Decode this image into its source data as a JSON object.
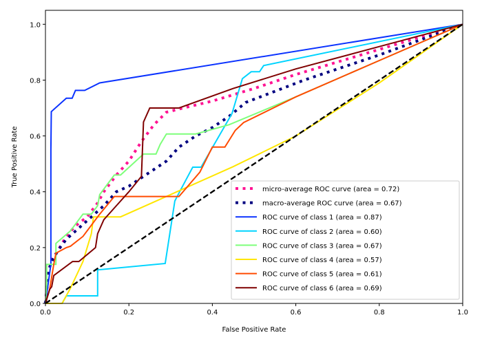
{
  "chart_data": {
    "type": "line",
    "title": "",
    "xlabel": "False Positive Rate",
    "ylabel": "True Positive Rate",
    "xlim": [
      0.0,
      1.0
    ],
    "ylim": [
      0.0,
      1.05
    ],
    "xticks": [
      "0.0",
      "0.2",
      "0.4",
      "0.6",
      "0.8",
      "1.0"
    ],
    "yticks": [
      "0.0",
      "0.2",
      "0.4",
      "0.6",
      "0.8",
      "1.0"
    ],
    "xtick_values": [
      0.0,
      0.2,
      0.4,
      0.6,
      0.8,
      1.0
    ],
    "ytick_values": [
      0.0,
      0.2,
      0.4,
      0.6,
      0.8,
      1.0
    ],
    "legend_position": "lower-right",
    "grid": false,
    "series": [
      {
        "name": "micro-average ROC curve (area = 0.72)",
        "color": "#ff1493",
        "style": "dotted",
        "points": [
          [
            0,
            0
          ],
          [
            0.004,
            0.06
          ],
          [
            0.008,
            0.12
          ],
          [
            0.015,
            0.155
          ],
          [
            0.03,
            0.19
          ],
          [
            0.05,
            0.24
          ],
          [
            0.07,
            0.275
          ],
          [
            0.1,
            0.31
          ],
          [
            0.125,
            0.36
          ],
          [
            0.14,
            0.4
          ],
          [
            0.17,
            0.46
          ],
          [
            0.2,
            0.51
          ],
          [
            0.23,
            0.58
          ],
          [
            0.26,
            0.64
          ],
          [
            0.29,
            0.685
          ],
          [
            0.33,
            0.7
          ],
          [
            0.4,
            0.725
          ],
          [
            0.5,
            0.77
          ],
          [
            0.6,
            0.82
          ],
          [
            0.7,
            0.865
          ],
          [
            0.8,
            0.91
          ],
          [
            0.9,
            0.955
          ],
          [
            1.0,
            1.0
          ]
        ]
      },
      {
        "name": "macro-average ROC curve (area = 0.67)",
        "color": "#000080",
        "style": "dotted",
        "points": [
          [
            0,
            0
          ],
          [
            0.004,
            0.06
          ],
          [
            0.008,
            0.12
          ],
          [
            0.015,
            0.15
          ],
          [
            0.03,
            0.19
          ],
          [
            0.05,
            0.23
          ],
          [
            0.08,
            0.27
          ],
          [
            0.11,
            0.31
          ],
          [
            0.14,
            0.35
          ],
          [
            0.17,
            0.4
          ],
          [
            0.2,
            0.42
          ],
          [
            0.23,
            0.45
          ],
          [
            0.26,
            0.48
          ],
          [
            0.29,
            0.51
          ],
          [
            0.32,
            0.56
          ],
          [
            0.36,
            0.6
          ],
          [
            0.4,
            0.63
          ],
          [
            0.44,
            0.67
          ],
          [
            0.48,
            0.72
          ],
          [
            0.55,
            0.76
          ],
          [
            0.62,
            0.8
          ],
          [
            0.7,
            0.84
          ],
          [
            0.8,
            0.89
          ],
          [
            0.9,
            0.945
          ],
          [
            1.0,
            1.0
          ]
        ]
      },
      {
        "name": "ROC curve of class 1 (area = 0.87)",
        "color": "#0a32ff",
        "style": "solid",
        "points": [
          [
            0,
            0
          ],
          [
            0.013,
            0.14
          ],
          [
            0.013,
            0.55
          ],
          [
            0.014,
            0.687
          ],
          [
            0.05,
            0.735
          ],
          [
            0.064,
            0.735
          ],
          [
            0.072,
            0.763
          ],
          [
            0.094,
            0.763
          ],
          [
            0.13,
            0.79
          ],
          [
            1.0,
            1.0
          ]
        ]
      },
      {
        "name": "ROC curve of class 2 (area = 0.60)",
        "color": "#00d4ff",
        "style": "solid",
        "points": [
          [
            0,
            0
          ],
          [
            0.04,
            0
          ],
          [
            0.05,
            0.027
          ],
          [
            0.125,
            0.027
          ],
          [
            0.125,
            0.12
          ],
          [
            0.287,
            0.143
          ],
          [
            0.31,
            0.367
          ],
          [
            0.325,
            0.41
          ],
          [
            0.353,
            0.488
          ],
          [
            0.373,
            0.488
          ],
          [
            0.447,
            0.68
          ],
          [
            0.472,
            0.805
          ],
          [
            0.493,
            0.83
          ],
          [
            0.513,
            0.83
          ],
          [
            0.523,
            0.852
          ],
          [
            1.0,
            1.0
          ]
        ]
      },
      {
        "name": "ROC curve of class 3 (area = 0.67)",
        "color": "#7dff7a",
        "style": "solid",
        "points": [
          [
            0,
            0
          ],
          [
            0.003,
            0.07
          ],
          [
            0.003,
            0.14
          ],
          [
            0.025,
            0.14
          ],
          [
            0.025,
            0.215
          ],
          [
            0.06,
            0.26
          ],
          [
            0.09,
            0.32
          ],
          [
            0.11,
            0.32
          ],
          [
            0.125,
            0.35
          ],
          [
            0.13,
            0.39
          ],
          [
            0.165,
            0.46
          ],
          [
            0.18,
            0.46
          ],
          [
            0.235,
            0.535
          ],
          [
            0.265,
            0.535
          ],
          [
            0.275,
            0.57
          ],
          [
            0.29,
            0.607
          ],
          [
            0.36,
            0.607
          ],
          [
            0.44,
            0.64
          ],
          [
            0.6,
            0.74
          ],
          [
            0.8,
            0.87
          ],
          [
            1.0,
            1.0
          ]
        ]
      },
      {
        "name": "ROC curve of class 4 (area = 0.57)",
        "color": "#ffe600",
        "style": "solid",
        "points": [
          [
            0,
            0
          ],
          [
            0.04,
            0
          ],
          [
            0.06,
            0.055
          ],
          [
            0.09,
            0.15
          ],
          [
            0.11,
            0.25
          ],
          [
            0.115,
            0.31
          ],
          [
            0.18,
            0.31
          ],
          [
            0.3,
            0.39
          ],
          [
            0.45,
            0.49
          ],
          [
            0.6,
            0.6
          ],
          [
            0.8,
            0.79
          ],
          [
            1.0,
            1.0
          ]
        ]
      },
      {
        "name": "ROC curve of class 5 (area = 0.61)",
        "color": "#ff4a00",
        "style": "solid",
        "points": [
          [
            0,
            0
          ],
          [
            0.01,
            0.05
          ],
          [
            0.02,
            0.14
          ],
          [
            0.025,
            0.18
          ],
          [
            0.05,
            0.2
          ],
          [
            0.06,
            0.205
          ],
          [
            0.09,
            0.24
          ],
          [
            0.13,
            0.32
          ],
          [
            0.165,
            0.383
          ],
          [
            0.32,
            0.383
          ],
          [
            0.37,
            0.47
          ],
          [
            0.4,
            0.56
          ],
          [
            0.43,
            0.56
          ],
          [
            0.455,
            0.62
          ],
          [
            0.475,
            0.648
          ],
          [
            0.6,
            0.74
          ],
          [
            0.8,
            0.87
          ],
          [
            1.0,
            1.0
          ]
        ]
      },
      {
        "name": "ROC curve of class 6 (area = 0.69)",
        "color": "#7f0000",
        "style": "solid",
        "points": [
          [
            0,
            0
          ],
          [
            0.01,
            0.05
          ],
          [
            0.015,
            0.06
          ],
          [
            0.02,
            0.1
          ],
          [
            0.065,
            0.15
          ],
          [
            0.08,
            0.15
          ],
          [
            0.12,
            0.2
          ],
          [
            0.125,
            0.25
          ],
          [
            0.14,
            0.3
          ],
          [
            0.17,
            0.35
          ],
          [
            0.2,
            0.4
          ],
          [
            0.23,
            0.455
          ],
          [
            0.235,
            0.65
          ],
          [
            0.25,
            0.7
          ],
          [
            0.32,
            0.7
          ],
          [
            0.45,
            0.77
          ],
          [
            0.6,
            0.84
          ],
          [
            0.8,
            0.92
          ],
          [
            1.0,
            1.0
          ]
        ]
      },
      {
        "name": "chance",
        "color": "#000000",
        "style": "dashed",
        "legend": false,
        "points": [
          [
            0,
            0
          ],
          [
            1,
            1
          ]
        ]
      }
    ]
  }
}
